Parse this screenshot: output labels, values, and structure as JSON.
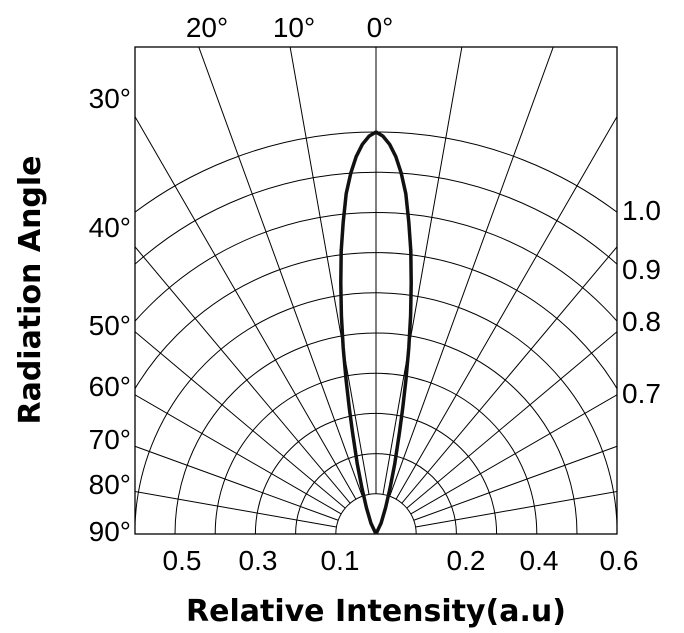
{
  "chart_data": {
    "type": "polar-line",
    "xlabel": "Relative Intensity(a.u)",
    "ylabel": "Radiation Angle",
    "top_angle_labels": [
      "20°",
      "10°",
      "0°"
    ],
    "left_angle_labels": [
      "30°",
      "40°",
      "50°",
      "60°",
      "70°",
      "80°",
      "90°"
    ],
    "right_intensity_labels": [
      "1.0",
      "0.9",
      "0.8",
      "0.7"
    ],
    "bottom_intensity_labels": [
      "0.5",
      "0.3",
      "0.1",
      "0.2",
      "0.4",
      "0.6"
    ],
    "grid_radii": [
      0.1,
      0.2,
      0.3,
      0.4,
      0.5,
      0.6,
      0.7,
      0.8,
      0.9,
      1.0
    ],
    "grid_angle_step_deg": 10,
    "series": [
      {
        "angle_deg": [
          0,
          1,
          2,
          3,
          4,
          5,
          6,
          7,
          8,
          9,
          10,
          11,
          12,
          13,
          15,
          17,
          20,
          25,
          30
        ],
        "intensity": [
          1.0,
          0.99,
          0.97,
          0.94,
          0.9,
          0.85,
          0.78,
          0.71,
          0.63,
          0.55,
          0.47,
          0.39,
          0.32,
          0.26,
          0.18,
          0.12,
          0.07,
          0.03,
          0.0
        ]
      }
    ]
  }
}
